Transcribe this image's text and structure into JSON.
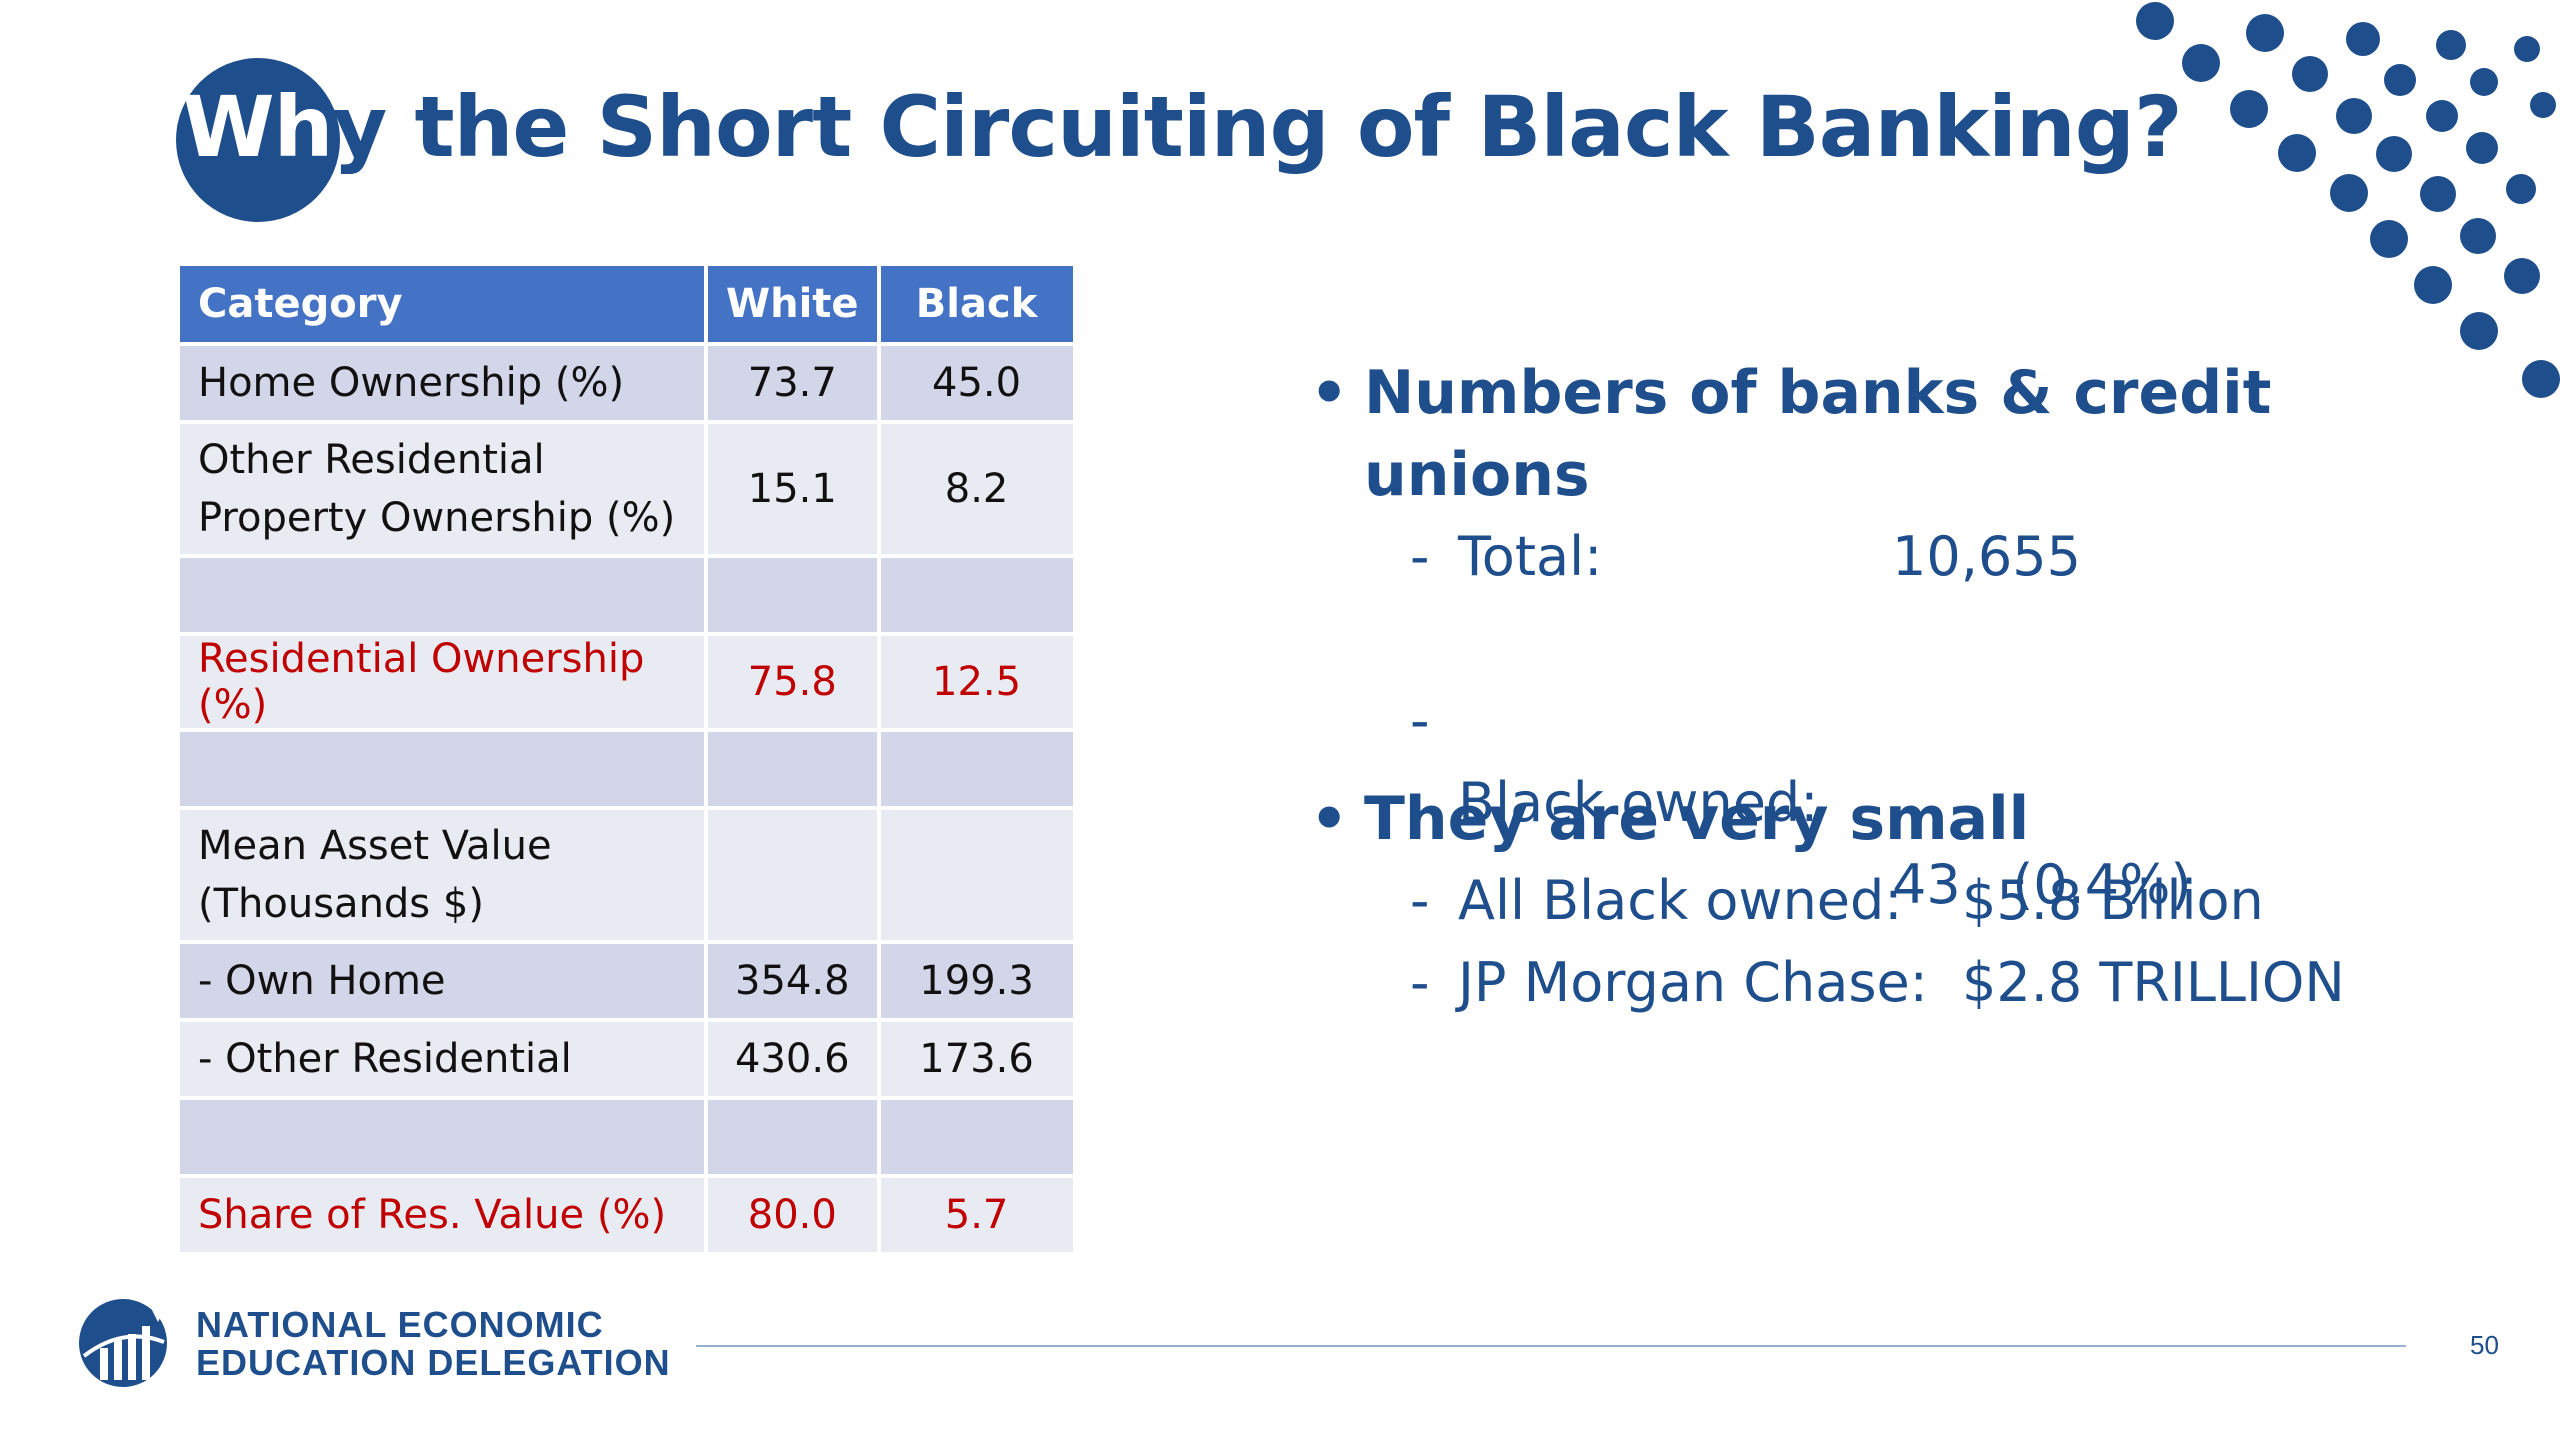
{
  "slide": {
    "title_part1": "Wh",
    "title_part2": "y the Short Circuiting of Black Banking?",
    "page_number": "50"
  },
  "table": {
    "headers": {
      "category": "Category",
      "white": "White",
      "black": "Black"
    },
    "rows": [
      {
        "category": "Home Ownership (%)",
        "white": "73.7",
        "black": "45.0"
      },
      {
        "category": "Other Residential Property Ownership (%)",
        "white": "15.1",
        "black": "8.2"
      },
      {
        "category": "",
        "white": "",
        "black": ""
      },
      {
        "category": "Residential Ownership (%)",
        "white": "75.8",
        "black": "12.5",
        "highlight_color": "#c00000"
      },
      {
        "category": "",
        "white": "",
        "black": ""
      },
      {
        "category": "Mean Asset Value (Thousands $)",
        "white": "",
        "black": ""
      },
      {
        "category": "- Own Home",
        "white": "354.8",
        "black": "199.3"
      },
      {
        "category": "- Other Residential",
        "white": "430.6",
        "black": "173.6"
      },
      {
        "category": "",
        "white": "",
        "black": ""
      },
      {
        "category": "Share of Res. Value (%)",
        "white": "80.0",
        "black": "5.7",
        "highlight_color": "#c00000"
      }
    ]
  },
  "bullets": [
    {
      "marker": "•",
      "text_line1": "Numbers of banks & credit",
      "text_line2": "unions",
      "subs": [
        {
          "dash": "-",
          "label": "Total:",
          "value": "10,655"
        },
        {
          "dash": "-",
          "label": "Black owned:",
          "value": "43   (0.4%)"
        }
      ]
    },
    {
      "marker": "•",
      "text_line1": "They are very small",
      "subs": [
        {
          "dash": "-",
          "label": "All Black owned:",
          "value": "$5.8 Billion"
        },
        {
          "dash": "-",
          "label": "JP Morgan Chase:",
          "value": "$2.8 TRILLION"
        }
      ]
    }
  ],
  "footer": {
    "org_line1": "NATIONAL ECONOMIC",
    "org_line2": "EDUCATION DELEGATION",
    "logo_icon": "need-globe-chart-icon"
  },
  "colors": {
    "primary": "#1f4e8c",
    "header": "#4472c4",
    "highlight": "#c00000"
  }
}
